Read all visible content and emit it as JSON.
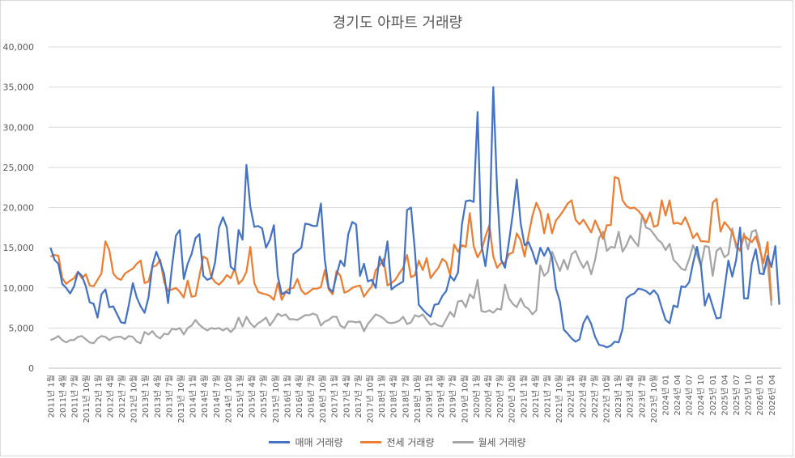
{
  "chart_data": {
    "type": "line",
    "title": "경기도 아파트 거래량",
    "ylim": [
      0,
      40000
    ],
    "yticks": [
      "0",
      "5,000",
      "10,000",
      "15,000",
      "20,000",
      "25,000",
      "30,000",
      "35,000",
      "40,000"
    ],
    "grid": true,
    "legend_position": "bottom",
    "x_tick_labels": [
      "2011년 1월",
      "2011년 4월",
      "2011년 7월",
      "2011년 10월",
      "2012년 1월",
      "2012년 4월",
      "2012년 7월",
      "2012년 10월",
      "2013년 1월",
      "2013년 4월",
      "2013년 7월",
      "2013년 10월",
      "2014년 1월",
      "2014년 4월",
      "2014년 7월",
      "2014년 10월",
      "2015년 1월",
      "2015년 4월",
      "2015년 7월",
      "2015년 10월",
      "2016년 1월",
      "2016년 4월",
      "2016년 7월",
      "2016년 10월",
      "2017년 1월",
      "2017년 4월",
      "2017년 7월",
      "2017년 10월",
      "2018년 1월",
      "2018년 4월",
      "2018년 7월",
      "2018년 10월",
      "2019년 1월",
      "2019년 4월",
      "2019년 7월",
      "2019년 10월",
      "2020년 1월",
      "2020년 4월",
      "2020년 7월",
      "2020년 10월",
      "2021년 1월",
      "2021년 4월",
      "2021년 7월",
      "2021년 10월",
      "2022년 1월",
      "2022년 4월",
      "2022년 7월",
      "2022년 10월",
      "2023년 1월",
      "2023년 4월",
      "2023년 7월",
      "2023년 10월",
      "2024년 01",
      "2024년 04",
      "2024년 07",
      "2024년 10",
      "2025년 01",
      "2025년 04",
      "2025년 07",
      "2025년 10",
      "2026년 01",
      "2026년 04"
    ],
    "series": [
      {
        "name": "매매 거래량",
        "color": "#4472C4",
        "values": [
          15000,
          13500,
          13000,
          10500,
          10000,
          9300,
          10200,
          12000,
          11500,
          10200,
          8200,
          8000,
          6300,
          9200,
          9800,
          7600,
          7700,
          6700,
          5700,
          5600,
          7900,
          10600,
          8800,
          7700,
          6900,
          8800,
          12800,
          14500,
          13200,
          11700,
          8100,
          12600,
          16500,
          17200,
          11100,
          13000,
          14200,
          16200,
          16700,
          11500,
          11000,
          11200,
          13200,
          17500,
          18800,
          17500,
          12600,
          12200,
          17200,
          16000,
          25300,
          20100,
          17600,
          17700,
          17400,
          15000,
          16000,
          17800,
          11500,
          9200,
          9500,
          9300,
          14200,
          14600,
          15000,
          18000,
          17900,
          17700,
          17700,
          20500,
          13500,
          10000,
          9500,
          11600,
          13400,
          12700,
          16700,
          18200,
          17900,
          11500,
          13000,
          10800,
          11000,
          10000,
          13900,
          12700,
          15800,
          9800,
          10200,
          10500,
          10800,
          19700,
          20000,
          14600,
          7900,
          7300,
          6800,
          6400,
          7900,
          8000,
          9000,
          9600,
          11500,
          10900,
          11900,
          17900,
          20800,
          20900,
          20700,
          31900,
          15300,
          12700,
          16700,
          35000,
          22000,
          13500,
          12500,
          15700,
          19300,
          23500,
          18000,
          15300,
          15700,
          14500,
          13000,
          15000,
          14000,
          15000,
          13800,
          9900,
          8300,
          4800,
          4300,
          3700,
          3300,
          3600,
          5600,
          6500,
          5500,
          3900,
          2900,
          2800,
          2600,
          2800,
          3300,
          3200,
          4900,
          8700,
          9100,
          9300,
          9900,
          9800,
          9600,
          9200,
          9700,
          9100,
          7500,
          6000,
          5600,
          7800,
          7600,
          10200,
          10100,
          10700,
          13100,
          15100,
          12800,
          7800,
          9300,
          7700,
          6200,
          6300,
          9800,
          13400,
          11400,
          13500,
          17500,
          8700,
          8700,
          13000,
          14800,
          11800,
          11700,
          14000,
          12600,
          15200,
          7900
        ]
      },
      {
        "name": "전세 거래량",
        "color": "#ED7D31",
        "values": [
          13900,
          14100,
          14000,
          11200,
          10500,
          10900,
          11200,
          12000,
          11200,
          11700,
          10300,
          10200,
          11000,
          11800,
          15800,
          14700,
          11800,
          11200,
          11000,
          11800,
          12100,
          12400,
          13000,
          13400,
          10600,
          10800,
          12600,
          12800,
          13500,
          10700,
          9600,
          9800,
          10000,
          9500,
          8800,
          10900,
          8900,
          9000,
          11500,
          13900,
          13600,
          11400,
          10700,
          10400,
          10900,
          11600,
          11200,
          12400,
          10500,
          11000,
          12000,
          15100,
          10600,
          9500,
          9300,
          9200,
          9000,
          8500,
          10600,
          8500,
          9500,
          9900,
          10000,
          11100,
          9700,
          9200,
          9500,
          9900,
          9900,
          10100,
          12200,
          9800,
          9200,
          12100,
          11500,
          9400,
          9600,
          10000,
          10200,
          10300,
          8900,
          9600,
          10200,
          12200,
          12800,
          13600,
          10300,
          10600,
          11000,
          11800,
          12500,
          14100,
          11300,
          11600,
          13400,
          12200,
          13700,
          11200,
          11900,
          12500,
          13600,
          13200,
          11600,
          15400,
          14500,
          15300,
          15100,
          19300,
          15200,
          13800,
          14700,
          16400,
          17800,
          13900,
          12500,
          13100,
          13100,
          14200,
          14400,
          16800,
          15900,
          13900,
          16500,
          19000,
          20600,
          19500,
          16800,
          19200,
          16800,
          18400,
          19000,
          19700,
          20500,
          20900,
          18500,
          17900,
          18500,
          17700,
          16900,
          18400,
          17300,
          16100,
          17800,
          17800,
          23800,
          23600,
          20900,
          20200,
          19900,
          20000,
          19600,
          19000,
          18100,
          19400,
          17600,
          17800,
          20900,
          19000,
          20900,
          18000,
          18100,
          17900,
          18800,
          17600,
          16200,
          16800,
          15800,
          15800,
          15700,
          20600,
          21100,
          17000,
          18200,
          17600,
          16900,
          15500,
          14600,
          16500,
          16100,
          15700,
          16400,
          14800,
          13100,
          15700,
          8400
        ]
      },
      {
        "name": "월세 거래량",
        "color": "#A5A5A5",
        "values": [
          3500,
          3700,
          4000,
          3500,
          3200,
          3500,
          3500,
          3900,
          4000,
          3600,
          3200,
          3100,
          3700,
          4000,
          3900,
          3500,
          3800,
          3900,
          3900,
          3600,
          4000,
          3900,
          3300,
          3100,
          4500,
          4200,
          4600,
          4000,
          3700,
          4300,
          4200,
          4900,
          4800,
          5000,
          4200,
          5000,
          5300,
          6000,
          5400,
          5000,
          4700,
          5000,
          4900,
          5000,
          4700,
          5000,
          4500,
          5000,
          6300,
          5200,
          6400,
          5600,
          5100,
          5600,
          5900,
          6300,
          5300,
          6000,
          6800,
          6500,
          6700,
          6100,
          6100,
          6000,
          6300,
          6600,
          6600,
          6800,
          6600,
          5300,
          5800,
          6000,
          6400,
          6400,
          5300,
          5000,
          5800,
          5800,
          5700,
          5800,
          4600,
          5500,
          6100,
          6700,
          6500,
          6200,
          5700,
          5600,
          5700,
          5900,
          6400,
          5500,
          5700,
          6600,
          6400,
          6700,
          6000,
          5400,
          5600,
          5300,
          5200,
          6100,
          7000,
          6400,
          8300,
          8400,
          7600,
          9200,
          8700,
          11000,
          7100,
          7000,
          7200,
          6900,
          7400,
          7300,
          10400,
          8700,
          8000,
          7600,
          8700,
          7700,
          7400,
          6700,
          7200,
          12800,
          11500,
          12000,
          14500,
          13300,
          12100,
          13500,
          12300,
          14200,
          14600,
          13400,
          12500,
          13300,
          11700,
          13500,
          16200,
          17000,
          14600,
          15100,
          15000,
          17000,
          14500,
          15300,
          16500,
          15800,
          15200,
          19100,
          17500,
          17300,
          16700,
          16000,
          15600,
          14700,
          15500,
          13500,
          13000,
          12400,
          12200,
          13600,
          15300,
          14200,
          12700,
          15200,
          15100,
          11500,
          14600,
          15000,
          13800,
          14200,
          17400,
          15000,
          14800,
          16800,
          14800,
          17000,
          17200,
          15400,
          11900,
          13400,
          7800
        ]
      }
    ]
  }
}
